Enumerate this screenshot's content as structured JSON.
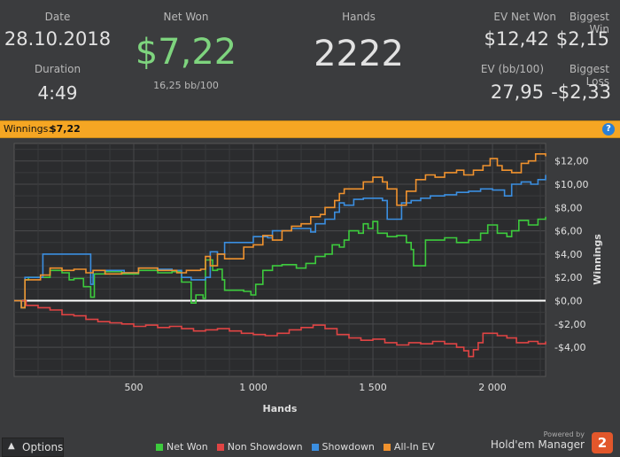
{
  "stats": {
    "date_label": "Date",
    "date": "28.10.2018",
    "duration_label": "Duration",
    "duration": "4:49",
    "net_won_label": "Net Won",
    "net_won": "$7,22",
    "net_won_rate": "16,25 bb/100",
    "hands_label": "Hands",
    "hands": "2222",
    "ev_net_won_label": "EV Net Won",
    "ev_net_won": "$12,42",
    "biggest_win_label": "Biggest Win",
    "biggest_win": "$2,15",
    "ev_bb_label": "EV (bb/100)",
    "ev_bb": "27,95",
    "biggest_loss_label": "Biggest Loss",
    "biggest_loss": "-$2,33"
  },
  "banner": {
    "label": "Winnings:",
    "value": "$7,22",
    "help_icon": "?"
  },
  "colors": {
    "net_won": "#3dcb3d",
    "non_showdown": "#e04444",
    "showdown": "#3b8ee0",
    "all_in_ev": "#f0922e",
    "banner": "#f5a623",
    "net_won_text": "#7ed47e"
  },
  "chart_data": {
    "type": "line",
    "xlabel": "Hands",
    "ylabel": "Winnings",
    "xlim": [
      0,
      2222
    ],
    "ylim": [
      -6.5,
      13.5
    ],
    "x_ticks": [
      500,
      1000,
      1500,
      2000
    ],
    "x_tick_labels": [
      "500",
      "1 000",
      "1 500",
      "2 000"
    ],
    "y_ticks": [
      12,
      10,
      8,
      6,
      4,
      2,
      0,
      -2,
      -4
    ],
    "y_tick_labels": [
      "$12,00",
      "$10,00",
      "$8,00",
      "$6,00",
      "$4,00",
      "$2,00",
      "$0,00",
      "-$2,00",
      "-$4,00"
    ],
    "grid": true,
    "legend_position": "bottom",
    "series": [
      {
        "name": "Net Won",
        "color_key": "net_won",
        "points": [
          [
            0,
            0
          ],
          [
            30,
            -0.6
          ],
          [
            45,
            1.8
          ],
          [
            60,
            2.0
          ],
          [
            110,
            2.0
          ],
          [
            150,
            2.6
          ],
          [
            200,
            2.4
          ],
          [
            230,
            1.8
          ],
          [
            250,
            1.9
          ],
          [
            290,
            1.2
          ],
          [
            320,
            0.3
          ],
          [
            335,
            2.3
          ],
          [
            380,
            2.5
          ],
          [
            450,
            2.3
          ],
          [
            520,
            2.6
          ],
          [
            600,
            2.4
          ],
          [
            660,
            2.5
          ],
          [
            700,
            1.6
          ],
          [
            740,
            -0.2
          ],
          [
            760,
            0.5
          ],
          [
            790,
            0.2
          ],
          [
            800,
            3.5
          ],
          [
            830,
            2.6
          ],
          [
            850,
            2.7
          ],
          [
            870,
            1.8
          ],
          [
            880,
            0.9
          ],
          [
            960,
            0.8
          ],
          [
            990,
            0.5
          ],
          [
            1010,
            1.4
          ],
          [
            1040,
            2.6
          ],
          [
            1080,
            3.0
          ],
          [
            1120,
            3.1
          ],
          [
            1180,
            2.8
          ],
          [
            1220,
            3.2
          ],
          [
            1260,
            3.8
          ],
          [
            1300,
            4.0
          ],
          [
            1330,
            4.8
          ],
          [
            1360,
            4.6
          ],
          [
            1380,
            5.2
          ],
          [
            1400,
            6.0
          ],
          [
            1440,
            5.8
          ],
          [
            1460,
            6.6
          ],
          [
            1480,
            6.2
          ],
          [
            1500,
            6.8
          ],
          [
            1520,
            5.8
          ],
          [
            1560,
            5.5
          ],
          [
            1600,
            5.6
          ],
          [
            1640,
            5.0
          ],
          [
            1660,
            4.4
          ],
          [
            1670,
            3.0
          ],
          [
            1690,
            3.0
          ],
          [
            1720,
            5.2
          ],
          [
            1760,
            5.2
          ],
          [
            1800,
            5.4
          ],
          [
            1850,
            5.0
          ],
          [
            1900,
            5.2
          ],
          [
            1950,
            5.8
          ],
          [
            1980,
            6.5
          ],
          [
            2020,
            5.8
          ],
          [
            2060,
            5.5
          ],
          [
            2080,
            6.0
          ],
          [
            2110,
            6.9
          ],
          [
            2150,
            6.5
          ],
          [
            2190,
            7.0
          ],
          [
            2222,
            7.2
          ]
        ]
      },
      {
        "name": "Non Showdown",
        "color_key": "non_showdown",
        "points": [
          [
            0,
            0
          ],
          [
            50,
            -0.4
          ],
          [
            100,
            -0.6
          ],
          [
            150,
            -0.8
          ],
          [
            200,
            -1.2
          ],
          [
            250,
            -1.3
          ],
          [
            300,
            -1.6
          ],
          [
            350,
            -1.8
          ],
          [
            400,
            -1.9
          ],
          [
            450,
            -2.0
          ],
          [
            500,
            -2.2
          ],
          [
            550,
            -2.1
          ],
          [
            600,
            -2.3
          ],
          [
            650,
            -2.2
          ],
          [
            700,
            -2.4
          ],
          [
            750,
            -2.6
          ],
          [
            800,
            -2.5
          ],
          [
            850,
            -2.4
          ],
          [
            900,
            -2.6
          ],
          [
            950,
            -2.8
          ],
          [
            1000,
            -2.9
          ],
          [
            1050,
            -3.0
          ],
          [
            1100,
            -2.8
          ],
          [
            1150,
            -2.5
          ],
          [
            1200,
            -2.3
          ],
          [
            1250,
            -2.1
          ],
          [
            1300,
            -2.4
          ],
          [
            1350,
            -2.9
          ],
          [
            1400,
            -3.2
          ],
          [
            1450,
            -3.4
          ],
          [
            1500,
            -3.3
          ],
          [
            1550,
            -3.6
          ],
          [
            1600,
            -3.8
          ],
          [
            1650,
            -3.6
          ],
          [
            1700,
            -3.7
          ],
          [
            1750,
            -3.5
          ],
          [
            1800,
            -3.7
          ],
          [
            1850,
            -4.0
          ],
          [
            1880,
            -4.3
          ],
          [
            1900,
            -4.8
          ],
          [
            1920,
            -4.2
          ],
          [
            1940,
            -3.6
          ],
          [
            1960,
            -2.8
          ],
          [
            1990,
            -2.8
          ],
          [
            2020,
            -3.0
          ],
          [
            2060,
            -3.2
          ],
          [
            2100,
            -3.6
          ],
          [
            2150,
            -3.5
          ],
          [
            2190,
            -3.7
          ],
          [
            2222,
            -3.5
          ]
        ]
      },
      {
        "name": "Showdown",
        "color_key": "showdown",
        "points": [
          [
            0,
            0
          ],
          [
            30,
            -0.6
          ],
          [
            45,
            2.0
          ],
          [
            110,
            2.0
          ],
          [
            120,
            4.0
          ],
          [
            270,
            4.0
          ],
          [
            320,
            1.4
          ],
          [
            330,
            2.6
          ],
          [
            420,
            2.6
          ],
          [
            460,
            2.4
          ],
          [
            520,
            2.8
          ],
          [
            600,
            2.7
          ],
          [
            660,
            2.6
          ],
          [
            700,
            2.0
          ],
          [
            740,
            1.8
          ],
          [
            800,
            2.0
          ],
          [
            820,
            4.2
          ],
          [
            850,
            4.0
          ],
          [
            880,
            5.0
          ],
          [
            940,
            5.0
          ],
          [
            1000,
            5.5
          ],
          [
            1060,
            5.4
          ],
          [
            1080,
            6.0
          ],
          [
            1160,
            6.2
          ],
          [
            1240,
            5.9
          ],
          [
            1260,
            6.6
          ],
          [
            1300,
            7.0
          ],
          [
            1340,
            7.6
          ],
          [
            1360,
            8.4
          ],
          [
            1380,
            8.2
          ],
          [
            1420,
            8.7
          ],
          [
            1460,
            8.8
          ],
          [
            1500,
            8.8
          ],
          [
            1540,
            8.6
          ],
          [
            1560,
            7.0
          ],
          [
            1600,
            7.0
          ],
          [
            1620,
            8.4
          ],
          [
            1660,
            8.6
          ],
          [
            1700,
            8.8
          ],
          [
            1740,
            9.0
          ],
          [
            1800,
            9.1
          ],
          [
            1850,
            9.3
          ],
          [
            1900,
            9.4
          ],
          [
            1950,
            9.6
          ],
          [
            2000,
            9.5
          ],
          [
            2050,
            9.0
          ],
          [
            2080,
            10.0
          ],
          [
            2120,
            10.2
          ],
          [
            2160,
            10.0
          ],
          [
            2190,
            10.4
          ],
          [
            2222,
            10.8
          ]
        ]
      },
      {
        "name": "All-In EV",
        "color_key": "all_in_ev",
        "points": [
          [
            0,
            0
          ],
          [
            30,
            -0.6
          ],
          [
            45,
            1.8
          ],
          [
            110,
            2.2
          ],
          [
            150,
            2.8
          ],
          [
            200,
            2.6
          ],
          [
            250,
            2.7
          ],
          [
            300,
            2.4
          ],
          [
            330,
            2.6
          ],
          [
            380,
            2.3
          ],
          [
            450,
            2.4
          ],
          [
            520,
            2.8
          ],
          [
            600,
            2.6
          ],
          [
            680,
            2.4
          ],
          [
            720,
            2.6
          ],
          [
            780,
            2.7
          ],
          [
            800,
            3.8
          ],
          [
            820,
            3.0
          ],
          [
            850,
            4.0
          ],
          [
            880,
            3.6
          ],
          [
            920,
            3.6
          ],
          [
            960,
            4.6
          ],
          [
            1000,
            4.8
          ],
          [
            1040,
            5.6
          ],
          [
            1080,
            5.2
          ],
          [
            1120,
            6.0
          ],
          [
            1160,
            6.4
          ],
          [
            1200,
            6.6
          ],
          [
            1240,
            7.2
          ],
          [
            1280,
            7.4
          ],
          [
            1300,
            8.0
          ],
          [
            1340,
            8.6
          ],
          [
            1360,
            9.2
          ],
          [
            1380,
            9.6
          ],
          [
            1420,
            9.6
          ],
          [
            1460,
            10.2
          ],
          [
            1500,
            10.6
          ],
          [
            1540,
            10.2
          ],
          [
            1560,
            9.6
          ],
          [
            1600,
            8.2
          ],
          [
            1640,
            9.4
          ],
          [
            1680,
            10.4
          ],
          [
            1720,
            10.8
          ],
          [
            1760,
            10.6
          ],
          [
            1800,
            11.0
          ],
          [
            1850,
            11.2
          ],
          [
            1880,
            10.8
          ],
          [
            1920,
            11.2
          ],
          [
            1960,
            11.6
          ],
          [
            1990,
            12.2
          ],
          [
            2020,
            11.6
          ],
          [
            2040,
            11.2
          ],
          [
            2080,
            11.0
          ],
          [
            2120,
            11.8
          ],
          [
            2150,
            12.0
          ],
          [
            2180,
            12.6
          ],
          [
            2222,
            12.4
          ]
        ]
      }
    ]
  },
  "footer": {
    "options_label": "Options",
    "legend": [
      {
        "label": "Net Won",
        "color_key": "net_won"
      },
      {
        "label": "Non Showdown",
        "color_key": "non_showdown"
      },
      {
        "label": "Showdown",
        "color_key": "showdown"
      },
      {
        "label": "All-In EV",
        "color_key": "all_in_ev"
      }
    ],
    "powered_by": "Powered by",
    "brand": "Hold'em Manager",
    "brand_number": "2"
  }
}
